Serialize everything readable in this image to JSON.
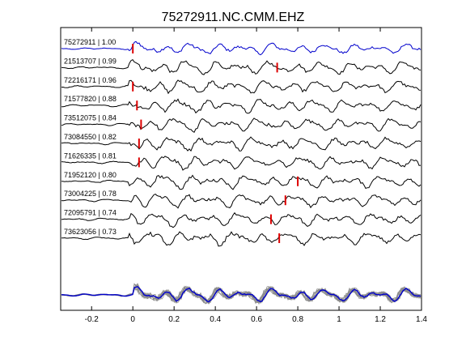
{
  "window": {
    "title": "75272911.NC.CMM.EHZ"
  },
  "chart_data": {
    "type": "line",
    "title": "75272911.NC.CMM.EHZ",
    "xlabel": "",
    "ylabel": "",
    "xlim": [
      -0.35,
      1.4
    ],
    "x_ticks": [
      -0.2,
      0,
      0.2,
      0.4,
      0.6,
      0.8,
      1,
      1.2,
      1.4
    ],
    "x_tick_labels": [
      "-0.2",
      "0",
      "0.2",
      "0.4",
      "0.6",
      "0.8",
      "1",
      "1.2",
      "1.4"
    ],
    "grid": false,
    "colors": {
      "reference": "#0000cc",
      "trace": "#000000",
      "pick": "#dd0000",
      "stack": "#8c8c8c"
    },
    "traces": [
      {
        "label": "75272911 | 1.00",
        "id": "75272911",
        "cc": 1.0,
        "pick_time": 0.0,
        "reference": true
      },
      {
        "label": "21513707 | 0.99",
        "id": "21513707",
        "cc": 0.99,
        "pick_time": 0.7
      },
      {
        "label": "72216171 | 0.96",
        "id": "72216171",
        "cc": 0.96,
        "pick_time": 0.0
      },
      {
        "label": "71577820 | 0.88",
        "id": "71577820",
        "cc": 0.88,
        "pick_time": 0.02
      },
      {
        "label": "73512075 | 0.84",
        "id": "73512075",
        "cc": 0.84,
        "pick_time": 0.04
      },
      {
        "label": "73084550 | 0.82",
        "id": "73084550",
        "cc": 0.82,
        "pick_time": 0.03
      },
      {
        "label": "71626335 | 0.81",
        "id": "71626335",
        "cc": 0.81,
        "pick_time": 0.03
      },
      {
        "label": "71952120 | 0.80",
        "id": "71952120",
        "cc": 0.8,
        "pick_time": 0.8
      },
      {
        "label": "73004225 | 0.78",
        "id": "73004225",
        "cc": 0.78,
        "pick_time": 0.74
      },
      {
        "label": "72095791 | 0.74",
        "id": "72095791",
        "cc": 0.74,
        "pick_time": 0.67
      },
      {
        "label": "73623056 | 0.73",
        "id": "73623056",
        "cc": 0.73,
        "pick_time": 0.71
      }
    ]
  }
}
